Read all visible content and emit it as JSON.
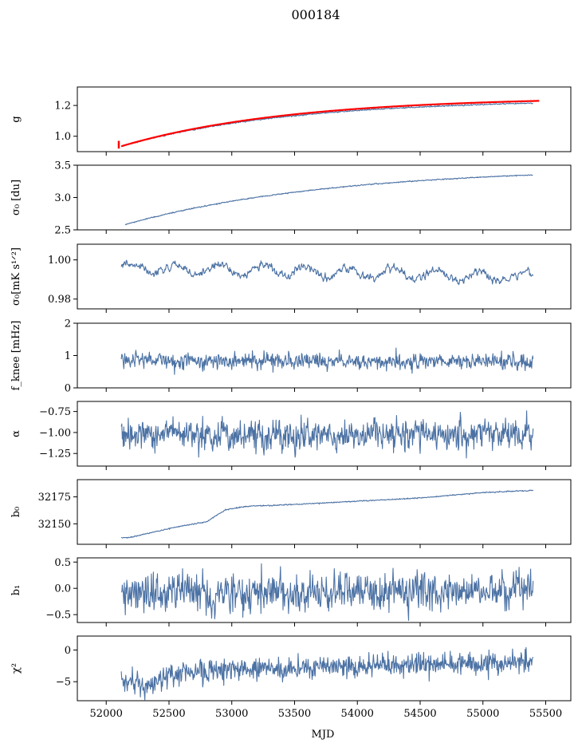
{
  "figure": {
    "title": "000184",
    "xlabel": "MJD"
  },
  "colors": {
    "series": "#4c72a4",
    "fit": "#ff0000",
    "axes": "#000000"
  },
  "chart_data": [
    {
      "type": "line",
      "id": "g",
      "ylabel": "g",
      "xlim": [
        51770,
        55700
      ],
      "ylim": [
        0.9,
        1.32
      ],
      "yticks": [
        1.0,
        1.2
      ],
      "ytick_labels": [
        "1.0",
        "1.2"
      ],
      "series": [
        {
          "role": "data",
          "shape": "rise",
          "start": [
            52120,
            0.935
          ],
          "end": [
            55400,
            1.215
          ],
          "k": 2.5,
          "noise": 0.002
        },
        {
          "role": "fit",
          "shape": "rise",
          "start": [
            52120,
            0.935
          ],
          "end": [
            55450,
            1.23
          ],
          "k": 2.5,
          "noise": 0.0
        },
        {
          "role": "fit-errorbar",
          "x": 52100,
          "y": 0.945,
          "err": 0.025
        }
      ]
    },
    {
      "type": "line",
      "id": "sigma0-du",
      "ylabel": "σ₀ [du]",
      "xlim": [
        51770,
        55700
      ],
      "ylim": [
        2.5,
        3.5
      ],
      "yticks": [
        2.5,
        3.0,
        3.5
      ],
      "ytick_labels": [
        "2.5",
        "3.0",
        "3.5"
      ],
      "series": [
        {
          "role": "data",
          "shape": "rise",
          "start": [
            52150,
            2.58
          ],
          "end": [
            55400,
            3.35
          ],
          "k": 2.0,
          "noise": 0.004
        }
      ]
    },
    {
      "type": "line",
      "id": "sigma0-mk",
      "ylabel": "σ₀[mK s¹ᐟ²]",
      "xlim": [
        51770,
        55700
      ],
      "ylim": [
        0.975,
        1.008
      ],
      "yticks": [
        0.98,
        1.0
      ],
      "ytick_labels": [
        "0.98",
        "1.00"
      ],
      "series": [
        {
          "role": "data",
          "shape": "wavy-trend",
          "start": [
            52120,
            0.996
          ],
          "end": [
            55400,
            0.991
          ],
          "amp": 0.0025,
          "noise": 0.0009
        }
      ]
    },
    {
      "type": "line",
      "id": "fknee",
      "ylabel": "f_knee [mHz]",
      "xlim": [
        51770,
        55700
      ],
      "ylim": [
        0,
        2
      ],
      "yticks": [
        0,
        1,
        2
      ],
      "ytick_labels": [
        "0",
        "1",
        "2"
      ],
      "series": [
        {
          "role": "data",
          "shape": "noise",
          "start": [
            52120,
            0.85
          ],
          "end": [
            55400,
            0.8
          ],
          "noise": 0.12
        }
      ]
    },
    {
      "type": "line",
      "id": "alpha",
      "ylabel": "α",
      "xlim": [
        51770,
        55700
      ],
      "ylim": [
        -1.4,
        -0.63
      ],
      "yticks": [
        -1.25,
        -1.0,
        -0.75
      ],
      "ytick_labels": [
        "−1.25",
        "−1.00",
        "−0.75"
      ],
      "series": [
        {
          "role": "data",
          "shape": "noise",
          "start": [
            52120,
            -1.03
          ],
          "end": [
            55400,
            -1.03
          ],
          "noise": 0.09
        }
      ]
    },
    {
      "type": "line",
      "id": "b0",
      "ylabel": "b₀",
      "xlim": [
        51770,
        55700
      ],
      "ylim": [
        32131,
        32191
      ],
      "yticks": [
        32150,
        32175
      ],
      "ytick_labels": [
        "32150",
        "32175"
      ],
      "series": [
        {
          "role": "data",
          "shape": "polyline",
          "points": [
            [
              52120,
              32137
            ],
            [
              52200,
              32137.5
            ],
            [
              52400,
              32143
            ],
            [
              52600,
              32148
            ],
            [
              52800,
              32152
            ],
            [
              52950,
              32163
            ],
            [
              53100,
              32166
            ],
            [
              53500,
              32168
            ],
            [
              54000,
              32171
            ],
            [
              54500,
              32174
            ],
            [
              55000,
              32179
            ],
            [
              55400,
              32181
            ]
          ],
          "noise": 0.25
        }
      ]
    },
    {
      "type": "line",
      "id": "b1",
      "ylabel": "b₁",
      "xlim": [
        51770,
        55700
      ],
      "ylim": [
        -0.65,
        0.58
      ],
      "yticks": [
        -0.5,
        0.0,
        0.5
      ],
      "ytick_labels": [
        "−0.5",
        "0.0",
        "0.5"
      ],
      "series": [
        {
          "role": "data",
          "shape": "noise",
          "start": [
            52120,
            -0.1
          ],
          "end": [
            55400,
            -0.02
          ],
          "noise": 0.17
        }
      ]
    },
    {
      "type": "line",
      "id": "chi2",
      "ylabel": "χ²",
      "xlim": [
        51770,
        55700
      ],
      "ylim": [
        -8,
        2.2
      ],
      "yticks": [
        -5,
        0
      ],
      "ytick_labels": [
        "−5",
        "0"
      ],
      "series": [
        {
          "role": "data",
          "shape": "polyline",
          "points": [
            [
              52120,
              -4.5
            ],
            [
              52300,
              -5.5
            ],
            [
              52500,
              -4.0
            ],
            [
              52700,
              -3.5
            ],
            [
              53000,
              -3.2
            ],
            [
              53500,
              -3.0
            ],
            [
              54000,
              -2.5
            ],
            [
              54500,
              -2.2
            ],
            [
              55000,
              -2.0
            ],
            [
              55400,
              -1.8
            ]
          ],
          "noise": 0.9
        }
      ]
    }
  ],
  "xaxis": {
    "ticks": [
      52000,
      52500,
      53000,
      53500,
      54000,
      54500,
      55000,
      55500
    ],
    "tick_labels": [
      "52000",
      "52500",
      "53000",
      "53500",
      "54000",
      "54500",
      "55000",
      "55500"
    ]
  }
}
